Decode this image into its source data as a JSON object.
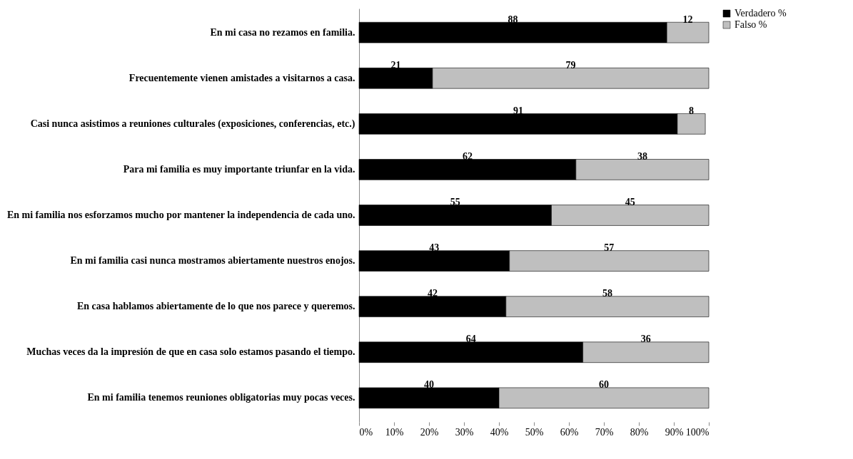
{
  "chart_data": {
    "type": "bar",
    "orientation": "horizontal",
    "stacked": true,
    "data_labels": true,
    "legend": "right",
    "grid": false,
    "categories": [
      "En mi casa no rezamos en familia.",
      "Frecuentemente vienen amistades a visitarnos a casa.",
      "Casi nunca asistimos a reuniones culturales (exposiciones, conferencias, etc.)",
      "Para mi familia es muy importante triunfar en la vida.",
      "En mi familia nos esforzamos mucho por mantener la independencia de cada uno.",
      "En mi familia casi nunca mostramos abiertamente nuestros enojos.",
      "En casa hablamos abiertamente de lo que nos parece y queremos.",
      "Muchas veces da la impresión de que en casa solo estamos pasando el tiempo.",
      "En mi familia tenemos reuniones obligatorias muy pocas veces."
    ],
    "series": [
      {
        "name": "Verdadero %",
        "color": "#000000",
        "values": [
          88,
          21,
          91,
          62,
          55,
          43,
          42,
          64,
          40
        ]
      },
      {
        "name": "Falso %",
        "color": "#bfbfbf",
        "values": [
          12,
          79,
          8,
          38,
          45,
          57,
          58,
          36,
          60
        ]
      }
    ],
    "xlim": [
      0,
      100
    ],
    "xticks": [
      {
        "value": 0,
        "label": "0%"
      },
      {
        "value": 10,
        "label": "10%"
      },
      {
        "value": 20,
        "label": "20%"
      },
      {
        "value": 30,
        "label": "30%"
      },
      {
        "value": 40,
        "label": "40%"
      },
      {
        "value": 50,
        "label": "50%"
      },
      {
        "value": 60,
        "label": "60%"
      },
      {
        "value": 70,
        "label": "70%"
      },
      {
        "value": 80,
        "label": "80%"
      },
      {
        "value": 90,
        "label": "90%"
      },
      {
        "value": 100,
        "label": "100%"
      }
    ]
  }
}
